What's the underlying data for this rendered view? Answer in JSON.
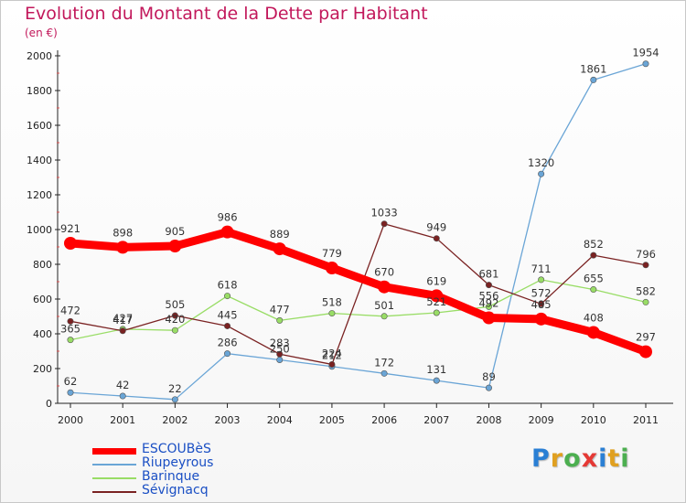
{
  "header": {
    "title": "Evolution du Montant de la Dette par Habitant",
    "subtitle": "(en €)"
  },
  "brand": {
    "text": "Proxiti",
    "letter_colors": [
      "#2a7fd4",
      "#e0a020",
      "#4caf50",
      "#e53935",
      "#2a7fd4",
      "#e0a020",
      "#4caf50"
    ]
  },
  "chart_data": {
    "type": "line",
    "title": "Evolution du Montant de la Dette par Habitant",
    "subtitle": "(en €)",
    "xlabel": "",
    "ylabel": "",
    "x": [
      "2000",
      "2001",
      "2002",
      "2003",
      "2004",
      "2005",
      "2006",
      "2007",
      "2008",
      "2009",
      "2010",
      "2011"
    ],
    "ylim": [
      0,
      2000
    ],
    "yticks": [
      0,
      200,
      400,
      600,
      800,
      1000,
      1200,
      1400,
      1600,
      1800,
      2000
    ],
    "grid": false,
    "legend_position": "bottom-left",
    "series": [
      {
        "name": "ESCOUBèS",
        "color": "#ff0000",
        "values": [
          921,
          898,
          905,
          986,
          889,
          779,
          670,
          619,
          492,
          485,
          408,
          297
        ]
      },
      {
        "name": "Riupeyrous",
        "color": "#6aa5d6",
        "values": [
          62,
          42,
          22,
          286,
          250,
          212,
          172,
          131,
          89,
          1320,
          1861,
          1954
        ]
      },
      {
        "name": "Barinque",
        "color": "#99dd66",
        "values": [
          365,
          427,
          420,
          618,
          477,
          518,
          501,
          521,
          556,
          711,
          655,
          582
        ]
      },
      {
        "name": "Sévignacq",
        "color": "#7a2222",
        "values": [
          472,
          417,
          505,
          445,
          283,
          224,
          1033,
          949,
          681,
          572,
          852,
          796
        ]
      }
    ]
  }
}
